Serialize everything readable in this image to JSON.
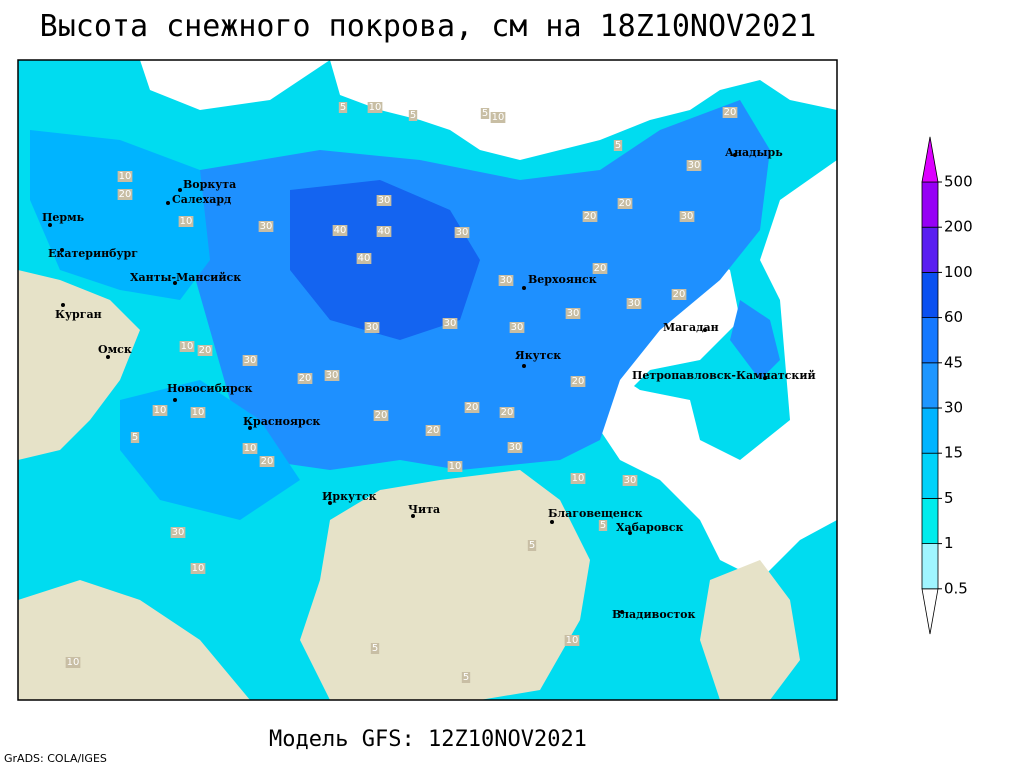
{
  "title": "Высота снежного покрова, см на 18Z10NOV2021",
  "subtitle": "Модель GFS: 12Z10NOV2021",
  "credit": "GrADS: COLA/IGES",
  "cities": [
    "Воркута",
    "Салехард",
    "Пермь",
    "Екатеринбург",
    "Ханты-Мансийск",
    "Курган",
    "Омск",
    "Новосибирск",
    "Красноярск",
    "Иркутск",
    "Чита",
    "Благовещенск",
    "Хабаровск",
    "Владивосток",
    "Якутск",
    "Верхоянск",
    "Магадан",
    "Петропавловск-Камчатский",
    "Анадырь"
  ],
  "contour_labels": [
    10,
    5,
    5,
    5,
    10,
    5,
    30,
    20,
    10,
    20,
    10,
    30,
    40,
    40,
    40,
    30,
    30,
    20,
    20,
    30,
    20,
    30,
    30,
    30,
    20,
    30,
    30,
    30,
    20,
    30,
    20,
    10,
    20,
    30,
    10,
    10,
    20,
    20,
    20,
    20,
    30,
    10,
    20,
    10,
    10,
    30,
    30,
    10,
    10,
    10,
    5,
    5,
    5,
    5,
    5
  ],
  "legend": {
    "levels": [
      0.5,
      1,
      5,
      15,
      30,
      45,
      60,
      100,
      200,
      500
    ],
    "colors": [
      "#ffffff",
      "#a0f5ff",
      "#00ecec",
      "#00d2fa",
      "#00b4ff",
      "#1e96ff",
      "#1478ff",
      "#0a50f0",
      "#5a1ef0",
      "#9600f5",
      "#dc00ff"
    ]
  }
}
